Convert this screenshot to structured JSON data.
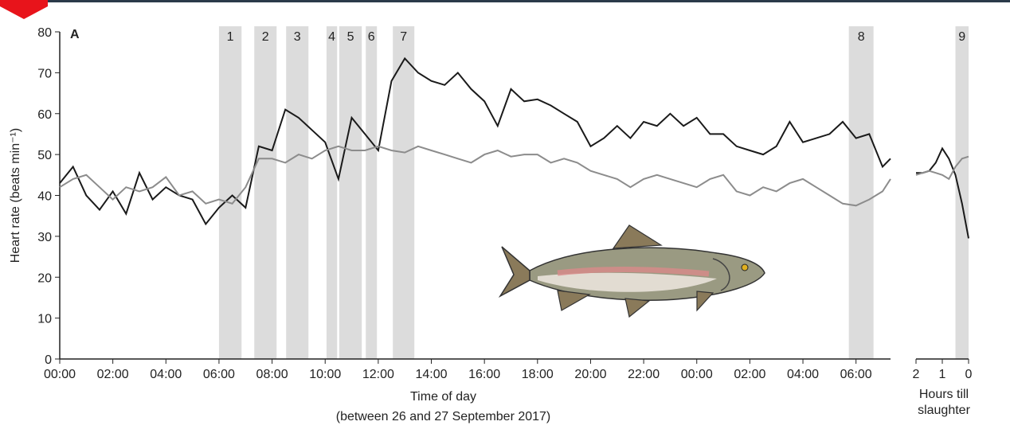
{
  "chart_data": [
    {
      "type": "line",
      "panel_label": "A",
      "y_label": "Heart rate (beats min⁻¹)",
      "x_label": "Time of day",
      "x_sublabel": "(between 26 and 27 September 2017)",
      "xlim": [
        0,
        31.3
      ],
      "ylim": [
        0,
        80
      ],
      "yticks": [
        0,
        10,
        20,
        30,
        40,
        50,
        60,
        70,
        80
      ],
      "xticks": [
        {
          "value": 0,
          "label": "00:00"
        },
        {
          "value": 2,
          "label": "02:00"
        },
        {
          "value": 4,
          "label": "04:00"
        },
        {
          "value": 6,
          "label": "06:00"
        },
        {
          "value": 8,
          "label": "08:00"
        },
        {
          "value": 10,
          "label": "10:00"
        },
        {
          "value": 12,
          "label": "12:00"
        },
        {
          "value": 14,
          "label": "14:00"
        },
        {
          "value": 16,
          "label": "16:00"
        },
        {
          "value": 18,
          "label": "18:00"
        },
        {
          "value": 20,
          "label": "20:00"
        },
        {
          "value": 22,
          "label": "22:00"
        },
        {
          "value": 24,
          "label": "00:00"
        },
        {
          "value": 26,
          "label": "02:00"
        },
        {
          "value": 28,
          "label": "04:00"
        },
        {
          "value": 30,
          "label": "06:00"
        }
      ],
      "bands": [
        {
          "label": "1",
          "range": [
            6.0,
            6.85
          ]
        },
        {
          "label": "2",
          "range": [
            7.33,
            8.17
          ]
        },
        {
          "label": "3",
          "range": [
            8.53,
            9.37
          ]
        },
        {
          "label": "4",
          "range": [
            10.05,
            10.45
          ]
        },
        {
          "label": "5",
          "range": [
            10.53,
            11.38
          ]
        },
        {
          "label": "6",
          "range": [
            11.53,
            11.95
          ]
        },
        {
          "label": "7",
          "range": [
            12.55,
            13.36
          ]
        },
        {
          "label": "8",
          "range": [
            29.73,
            30.66
          ]
        }
      ],
      "x": [
        0,
        0.5,
        1,
        1.5,
        2,
        2.5,
        3,
        3.5,
        4,
        4.5,
        5,
        5.5,
        6,
        6.5,
        7,
        7.5,
        8,
        8.5,
        9,
        9.5,
        10,
        10.5,
        11,
        11.5,
        12,
        12.5,
        13,
        13.5,
        14,
        14.5,
        15,
        15.5,
        16,
        16.5,
        17,
        17.5,
        18,
        18.5,
        19,
        19.5,
        20,
        20.5,
        21,
        21.5,
        22,
        22.5,
        23,
        23.5,
        24,
        24.5,
        25,
        25.5,
        26,
        26.5,
        27,
        27.5,
        28,
        28.5,
        29,
        29.5,
        30,
        30.5,
        31,
        31.3
      ],
      "series": [
        {
          "color": "#1a1a1a",
          "values": [
            43,
            47,
            40,
            36.5,
            41,
            35.5,
            45.5,
            39,
            42,
            40,
            39,
            33,
            37,
            40,
            37,
            52,
            51,
            61,
            59,
            56,
            53,
            44,
            59,
            55,
            51,
            68,
            73.5,
            70,
            68,
            67,
            70,
            66,
            63,
            57,
            66,
            63,
            63.5,
            62,
            60,
            58,
            52,
            54,
            57,
            54,
            58,
            57,
            60,
            57,
            59,
            55,
            55,
            52,
            51,
            50,
            52,
            58,
            53,
            54,
            55,
            58,
            54,
            55,
            47,
            49
          ]
        },
        {
          "color": "#8c8c8c",
          "values": [
            42,
            44,
            45,
            42,
            39,
            42,
            41,
            42,
            44.5,
            40,
            41,
            38,
            39,
            38,
            42,
            49,
            49,
            48,
            50,
            49,
            51,
            52,
            51,
            51,
            52,
            51,
            50.5,
            52,
            51,
            50,
            49,
            48,
            50,
            51,
            49.5,
            50,
            50,
            48,
            49,
            48,
            46,
            45,
            44,
            42,
            44,
            45,
            44,
            43,
            42,
            44,
            45,
            41,
            40,
            42,
            41,
            43,
            44,
            42,
            40,
            38,
            37.5,
            39,
            41,
            44
          ]
        }
      ]
    },
    {
      "type": "line",
      "x_label": "Hours till slaughter",
      "xlim": [
        2,
        0
      ],
      "ylim": [
        0,
        80
      ],
      "xticks": [
        2,
        1,
        0
      ],
      "bands": [
        {
          "label": "9",
          "range": [
            0.5,
            0
          ]
        }
      ],
      "x": [
        2,
        1.75,
        1.5,
        1.25,
        1,
        0.75,
        0.5,
        0.25,
        0
      ],
      "series": [
        {
          "color": "#1a1a1a",
          "values": [
            45.5,
            45.5,
            46,
            48,
            51.5,
            49,
            45,
            38,
            29.5
          ]
        },
        {
          "color": "#8c8c8c",
          "values": [
            45,
            45.5,
            46,
            45.5,
            45,
            44,
            47,
            49,
            49.5
          ]
        }
      ]
    }
  ]
}
